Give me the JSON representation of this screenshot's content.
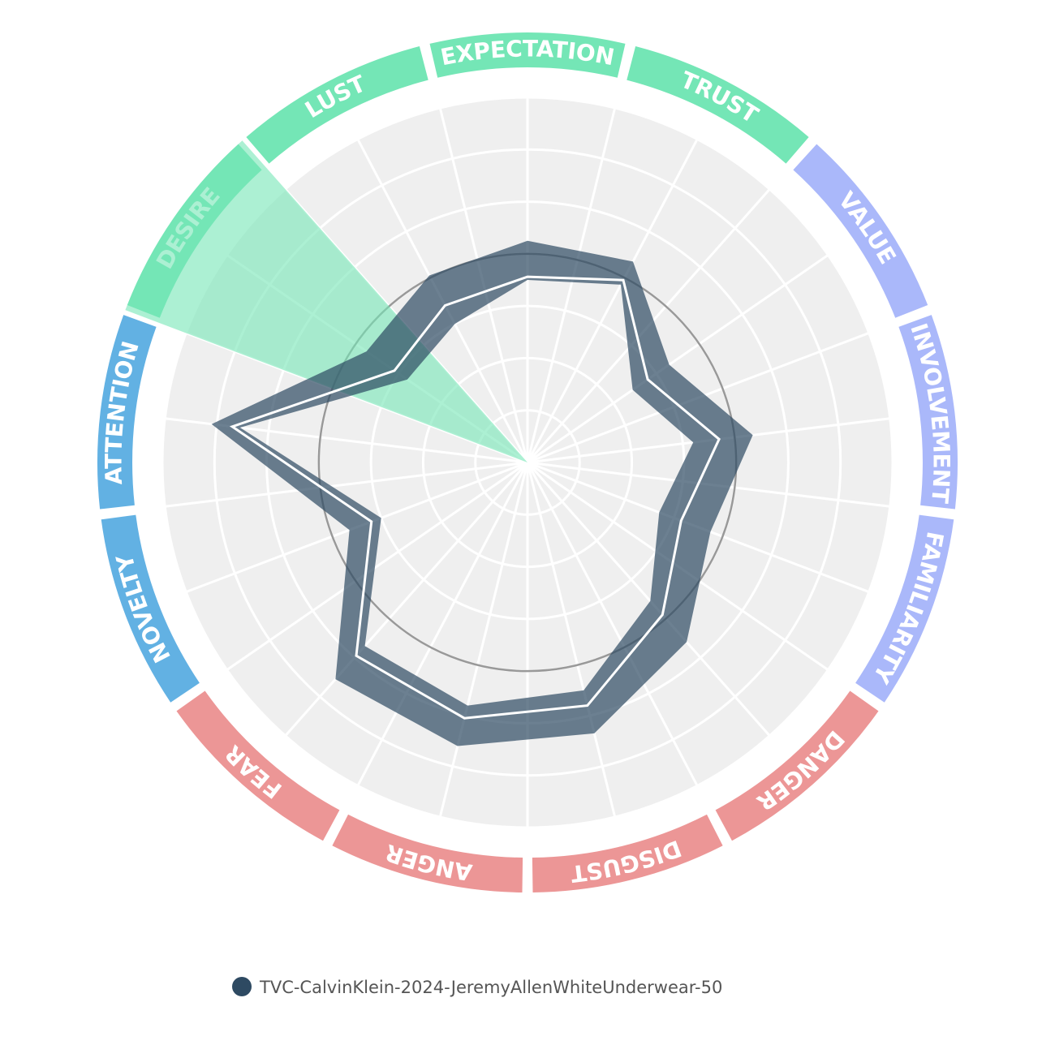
{
  "chart_data": {
    "type": "radar",
    "categories": [
      "EXPECTATION",
      "TRUST",
      "VALUE",
      "INVOLVEMENT",
      "FAMILIARITY",
      "DANGER",
      "DISGUST",
      "ANGER",
      "FEAR",
      "NOVELTY",
      "ATTENTION",
      "DESIRE",
      "LUST"
    ],
    "category_colors": [
      "#74e6b6",
      "#74e6b6",
      "#aab8fa",
      "#aab8fa",
      "#aab8fa",
      "#ec9696",
      "#ec9696",
      "#ec9696",
      "#ec9696",
      "#62b1e3",
      "#62b1e3",
      "#74e6b6",
      "#74e6b6"
    ],
    "highlight_index": 11,
    "rlim": [
      0,
      7
    ],
    "rticks": [
      1,
      2,
      3,
      4,
      5,
      6,
      7
    ],
    "reference": 4,
    "series": [
      {
        "name": "TVC-CalvinKlein-2024-JeremyAllenWhiteUnderwear-50",
        "color": "#2e4a62",
        "values": [
          3.56,
          3.95,
          2.8,
          3.7,
          3.15,
          3.9,
          4.8,
          5.05,
          4.95,
          3.2,
          5.7,
          3.1,
          3.4
        ],
        "lower": [
          3.5,
          3.85,
          2.45,
          3.2,
          2.7,
          3.55,
          4.5,
          4.8,
          4.7,
          3.0,
          5.55,
          2.8,
          3.0
        ],
        "upper": [
          4.25,
          4.35,
          3.3,
          4.35,
          3.75,
          4.6,
          5.35,
          5.6,
          5.55,
          3.65,
          6.1,
          3.75,
          4.05
        ]
      }
    ]
  }
}
